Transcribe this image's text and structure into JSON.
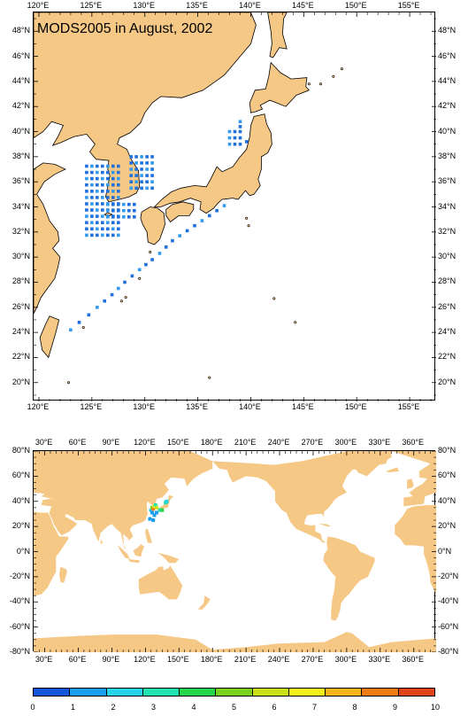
{
  "map1": {
    "title": "MODS2005 in August, 2002",
    "lon_ticks": [
      "120°E",
      "125°E",
      "130°E",
      "135°E",
      "140°E",
      "145°E",
      "150°E",
      "155°E"
    ],
    "lat_ticks": [
      "20°N",
      "22°N",
      "24°N",
      "26°N",
      "28°N",
      "30°N",
      "32°N",
      "34°N",
      "36°N",
      "38°N",
      "40°N",
      "42°N",
      "44°N",
      "46°N",
      "48°N"
    ],
    "lon_range": [
      119.5,
      157.5
    ],
    "lat_range": [
      18.5,
      49.5
    ],
    "land_color": "#f5c886",
    "obs_colors": [
      "#1f6fdc",
      "#3399ee"
    ]
  },
  "map2": {
    "lon_ticks": [
      "30°E",
      "60°E",
      "90°E",
      "120°E",
      "150°E",
      "180°E",
      "210°E",
      "240°E",
      "270°E",
      "300°E",
      "330°E",
      "360°E"
    ],
    "lat_ticks": [
      "80°N",
      "60°N",
      "40°N",
      "20°N",
      "0°N",
      "-20°N",
      "-40°N",
      "-60°N",
      "-80°N"
    ],
    "lon_range": [
      20,
      380
    ],
    "lat_range": [
      -80,
      80
    ],
    "land_color": "#f5c886"
  },
  "colorbar": {
    "labels": [
      "0",
      "1",
      "2",
      "3",
      "4",
      "5",
      "6",
      "7",
      "8",
      "9",
      "10"
    ],
    "colors": [
      "#1455d9",
      "#1b9ef0",
      "#26d3e8",
      "#22e3b0",
      "#26d64a",
      "#7ad21e",
      "#c9e01a",
      "#f4ef1a",
      "#f8b41c",
      "#f07a14",
      "#e0441a"
    ]
  },
  "chart_data": {
    "type": "heatmap",
    "title": "MODS2005 in August, 2002",
    "xlabel": "",
    "ylabel": "",
    "legend": "bottom",
    "colorbar_range": [
      0,
      10
    ]
  }
}
